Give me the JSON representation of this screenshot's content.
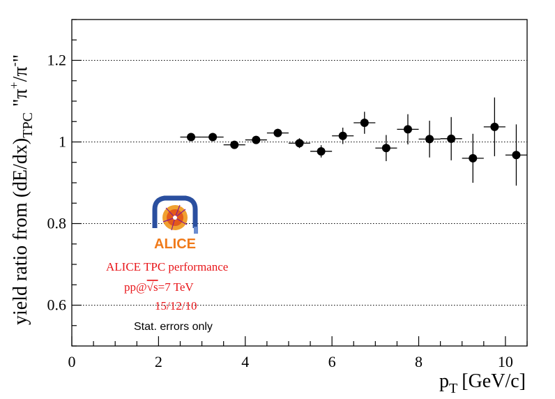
{
  "chart_data": {
    "type": "scatter",
    "xlabel": "p",
    "xlabel_sub": "T",
    "xlabel_unit": "[GeV/c]",
    "ylabel": "yield ratio from (dE/dx)",
    "ylabel_sub": "TPC",
    "ylabel_ratio": "\"π+/π-\"",
    "xlim": [
      0,
      10.5
    ],
    "ylim": [
      0.5,
      1.3
    ],
    "x_ticks": [
      0,
      2,
      4,
      6,
      8,
      10
    ],
    "x_tick_labels": [
      "0",
      "2",
      "4",
      "6",
      "8",
      "10"
    ],
    "y_ticks": [
      0.6,
      0.8,
      1.0,
      1.2
    ],
    "y_tick_labels": [
      "0.6",
      "0.8",
      "1",
      "1.2"
    ],
    "grid": "horizontal dotted",
    "points": [
      {
        "x": 2.75,
        "y": 1.012,
        "xerr": 0.25,
        "yerr": 0.006
      },
      {
        "x": 3.25,
        "y": 1.012,
        "xerr": 0.25,
        "yerr": 0.006
      },
      {
        "x": 3.75,
        "y": 0.993,
        "xerr": 0.25,
        "yerr": 0.007
      },
      {
        "x": 4.25,
        "y": 1.005,
        "xerr": 0.25,
        "yerr": 0.008
      },
      {
        "x": 4.75,
        "y": 1.022,
        "xerr": 0.25,
        "yerr": 0.01
      },
      {
        "x": 5.25,
        "y": 0.997,
        "xerr": 0.25,
        "yerr": 0.012
      },
      {
        "x": 5.75,
        "y": 0.977,
        "xerr": 0.25,
        "yerr": 0.015
      },
      {
        "x": 6.25,
        "y": 1.015,
        "xerr": 0.25,
        "yerr": 0.02
      },
      {
        "x": 6.75,
        "y": 1.047,
        "xerr": 0.25,
        "yerr": 0.027
      },
      {
        "x": 7.25,
        "y": 0.985,
        "xerr": 0.25,
        "yerr": 0.032
      },
      {
        "x": 7.75,
        "y": 1.031,
        "xerr": 0.25,
        "yerr": 0.037
      },
      {
        "x": 8.25,
        "y": 1.007,
        "xerr": 0.25,
        "yerr": 0.045
      },
      {
        "x": 8.75,
        "y": 1.008,
        "xerr": 0.25,
        "yerr": 0.053
      },
      {
        "x": 9.25,
        "y": 0.96,
        "xerr": 0.25,
        "yerr": 0.06
      },
      {
        "x": 9.75,
        "y": 1.037,
        "xerr": 0.25,
        "yerr": 0.072
      },
      {
        "x": 10.25,
        "y": 0.968,
        "xerr": 0.25,
        "yerr": 0.075
      }
    ],
    "annotations": {
      "logo_text": "ALICE",
      "performance": "ALICE TPC performance",
      "energy_prefix": "pp@",
      "energy_sqrt": "√s",
      "energy_suffix": "=7 TeV",
      "date": "15/12/10",
      "errors_note": "Stat. errors only"
    },
    "colors": {
      "marker": "#000000",
      "annotation_red": "#e8161a",
      "logo_blue": "#2a4f9f",
      "logo_orange": "#f07a1a"
    }
  }
}
